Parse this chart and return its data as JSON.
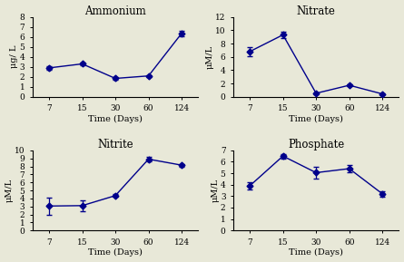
{
  "x_positions": [
    0,
    1,
    2,
    3,
    4
  ],
  "x_labels": [
    "7",
    "15",
    "30",
    "60",
    "124"
  ],
  "panels": [
    {
      "title": "Ammonium",
      "ylabel": "μg/ L",
      "y": [
        2.9,
        3.3,
        1.85,
        2.1,
        6.35
      ],
      "yerr": [
        0.15,
        0.12,
        0.1,
        0.1,
        0.28
      ],
      "ylim": [
        0,
        8
      ],
      "yticks": [
        0,
        1,
        2,
        3,
        4,
        5,
        6,
        7,
        8
      ]
    },
    {
      "title": "Nitrate",
      "ylabel": "μM/L",
      "y": [
        6.8,
        9.3,
        0.55,
        1.75,
        0.45
      ],
      "yerr": [
        0.7,
        0.5,
        0.12,
        0.15,
        0.08
      ],
      "ylim": [
        0,
        12
      ],
      "yticks": [
        0,
        2,
        4,
        6,
        8,
        10,
        12
      ]
    },
    {
      "title": "Nitrite",
      "ylabel": "μM/L",
      "y": [
        3.05,
        3.1,
        4.35,
        8.9,
        8.15
      ],
      "yerr": [
        1.1,
        0.7,
        0.18,
        0.25,
        0.18
      ],
      "ylim": [
        0,
        10
      ],
      "yticks": [
        0,
        1,
        2,
        3,
        4,
        5,
        6,
        7,
        8,
        9,
        10
      ]
    },
    {
      "title": "Phosphate",
      "ylabel": "μM/L",
      "y": [
        3.9,
        6.5,
        5.05,
        5.4,
        3.2
      ],
      "yerr": [
        0.35,
        0.2,
        0.55,
        0.35,
        0.25
      ],
      "ylim": [
        0,
        7
      ],
      "yticks": [
        0,
        1,
        2,
        3,
        4,
        5,
        6,
        7
      ]
    }
  ],
  "xlabel": "Time (Days)",
  "line_color": "#00008B",
  "marker": "D",
  "markersize": 3.5,
  "linewidth": 1.0,
  "capsize": 2.5,
  "elinewidth": 0.9,
  "title_fontsize": 8.5,
  "label_fontsize": 7,
  "tick_fontsize": 6.5,
  "bg_color": "#e8e8d8"
}
